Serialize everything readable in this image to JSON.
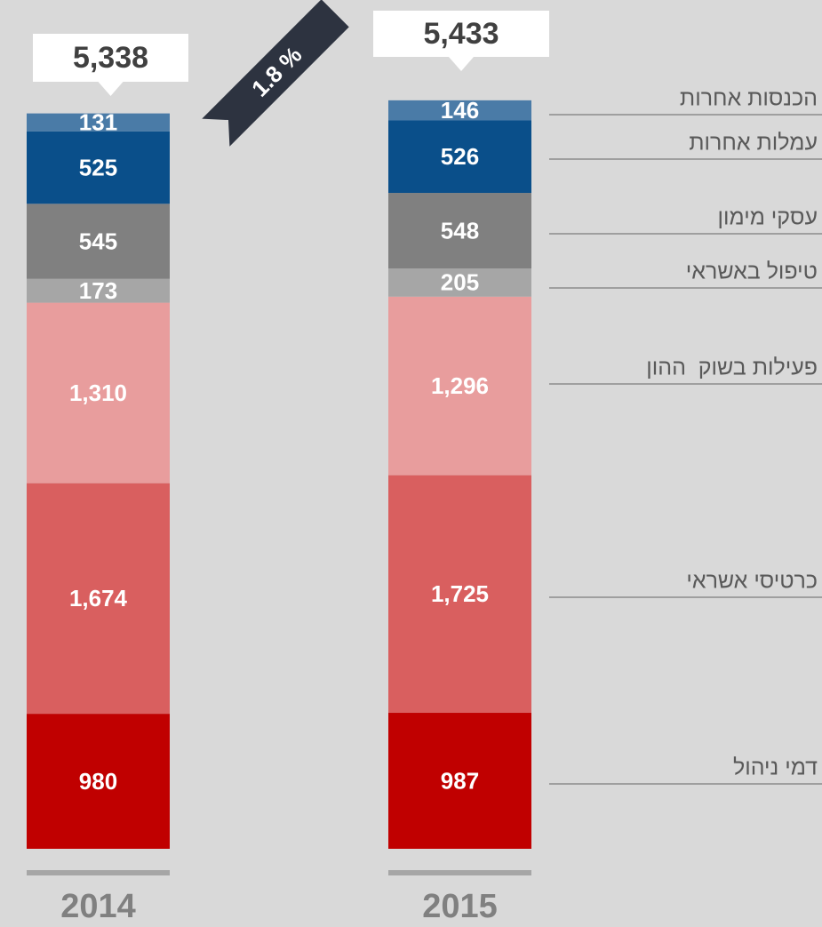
{
  "chart_data": {
    "type": "stacked-bar",
    "categories": [
      "2014",
      "2015"
    ],
    "series": [
      {
        "name": "דמי ניהול",
        "color": "#c00000",
        "values": [
          980,
          987
        ]
      },
      {
        "name": "כרטיסי אשראי",
        "color": "#d95f5f",
        "values": [
          1674,
          1725
        ],
        "value_labels": [
          "1,674",
          "1,725"
        ]
      },
      {
        "name": "פעילות בשוק  ההון",
        "color": "#e89d9d",
        "values": [
          1310,
          1296
        ],
        "value_labels": [
          "1,310",
          "1,296"
        ]
      },
      {
        "name": "טיפול באשראי",
        "color": "#a6a6a6",
        "values": [
          173,
          205
        ]
      },
      {
        "name": "עסקי מימון",
        "color": "#808080",
        "values": [
          545,
          548
        ]
      },
      {
        "name": "עמלות אחרות",
        "color": "#0a4f8a",
        "values": [
          525,
          526
        ]
      },
      {
        "name": "הכנסות אחרות",
        "color": "#4a7ba7",
        "values": [
          131,
          146
        ]
      }
    ],
    "totals": [
      5338,
      5433
    ],
    "total_labels": [
      "5,338",
      "5,433"
    ],
    "annotation": "1.8 %"
  }
}
